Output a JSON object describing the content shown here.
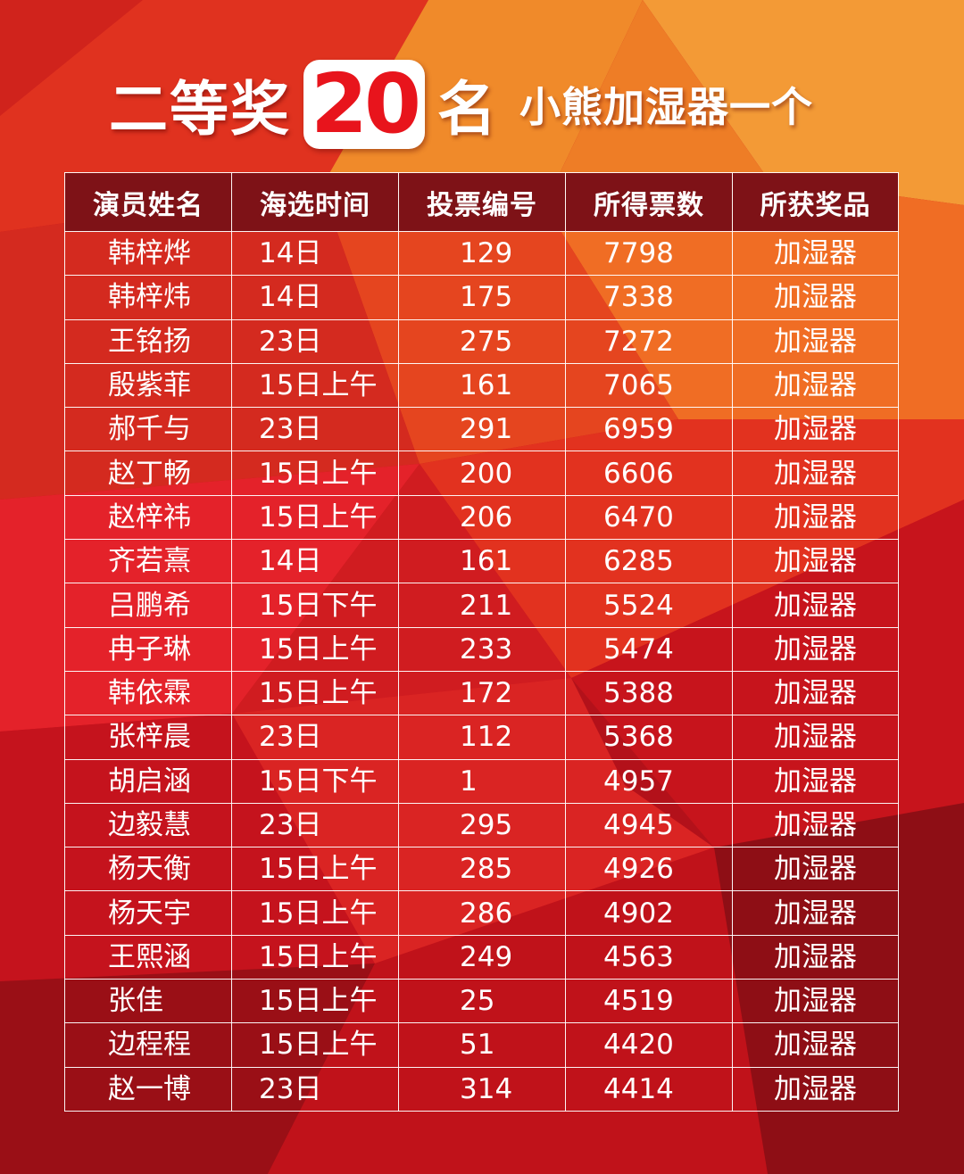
{
  "title": {
    "prefix": "二等奖",
    "count": "20",
    "suffix": "名",
    "prize": "小熊加湿器一个"
  },
  "table": {
    "headers": [
      "演员姓名",
      "海选时间",
      "投票编号",
      "所得票数",
      "所获奖品"
    ],
    "rows": [
      {
        "name": "韩梓烨",
        "date": "14日",
        "vote_id": "129",
        "votes": "7798",
        "prize": "加湿器"
      },
      {
        "name": "韩梓炜",
        "date": "14日",
        "vote_id": "175",
        "votes": "7338",
        "prize": "加湿器"
      },
      {
        "name": "王铭扬",
        "date": "23日",
        "vote_id": "275",
        "votes": "7272",
        "prize": "加湿器"
      },
      {
        "name": "殷紫菲",
        "date": "15日上午",
        "vote_id": "161",
        "votes": "7065",
        "prize": "加湿器"
      },
      {
        "name": "郝千与",
        "date": "23日",
        "vote_id": "291",
        "votes": "6959",
        "prize": "加湿器"
      },
      {
        "name": "赵丁畅",
        "date": "15日上午",
        "vote_id": "200",
        "votes": "6606",
        "prize": "加湿器"
      },
      {
        "name": "赵梓祎",
        "date": "15日上午",
        "vote_id": "206",
        "votes": "6470",
        "prize": "加湿器"
      },
      {
        "name": "齐若熹",
        "date": "14日",
        "vote_id": "161",
        "votes": "6285",
        "prize": "加湿器"
      },
      {
        "name": "吕鹏希",
        "date": "15日下午",
        "vote_id": "211",
        "votes": "5524",
        "prize": "加湿器"
      },
      {
        "name": "冉子琳",
        "date": "15日上午",
        "vote_id": "233",
        "votes": "5474",
        "prize": "加湿器"
      },
      {
        "name": "韩依霖",
        "date": "15日上午",
        "vote_id": "172",
        "votes": "5388",
        "prize": "加湿器"
      },
      {
        "name": "张梓晨",
        "date": "23日",
        "vote_id": "112",
        "votes": "5368",
        "prize": "加湿器"
      },
      {
        "name": "胡启涵",
        "date": "15日下午",
        "vote_id": "1",
        "votes": "4957",
        "prize": "加湿器"
      },
      {
        "name": "边毅慧",
        "date": "23日",
        "vote_id": "295",
        "votes": "4945",
        "prize": "加湿器"
      },
      {
        "name": "杨天衡",
        "date": "15日上午",
        "vote_id": "285",
        "votes": "4926",
        "prize": "加湿器"
      },
      {
        "name": "杨天宇",
        "date": "15日上午",
        "vote_id": "286",
        "votes": "4902",
        "prize": "加湿器"
      },
      {
        "name": "王熙涵",
        "date": "15日上午",
        "vote_id": "249",
        "votes": "4563",
        "prize": "加湿器"
      },
      {
        "name": "张佳",
        "date": "15日上午",
        "vote_id": "25",
        "votes": "4519",
        "prize": "加湿器"
      },
      {
        "name": "边程程",
        "date": "15日上午",
        "vote_id": "51",
        "votes": "4420",
        "prize": "加湿器"
      },
      {
        "name": "赵一博",
        "date": "23日",
        "vote_id": "314",
        "votes": "4414",
        "prize": "加湿器"
      }
    ]
  },
  "colors": {
    "background_red": "#c8151e",
    "background_orange": "#f08a2a",
    "header_bg": "#7e1217",
    "text": "#ffffff",
    "badge_text": "#e8141c"
  }
}
